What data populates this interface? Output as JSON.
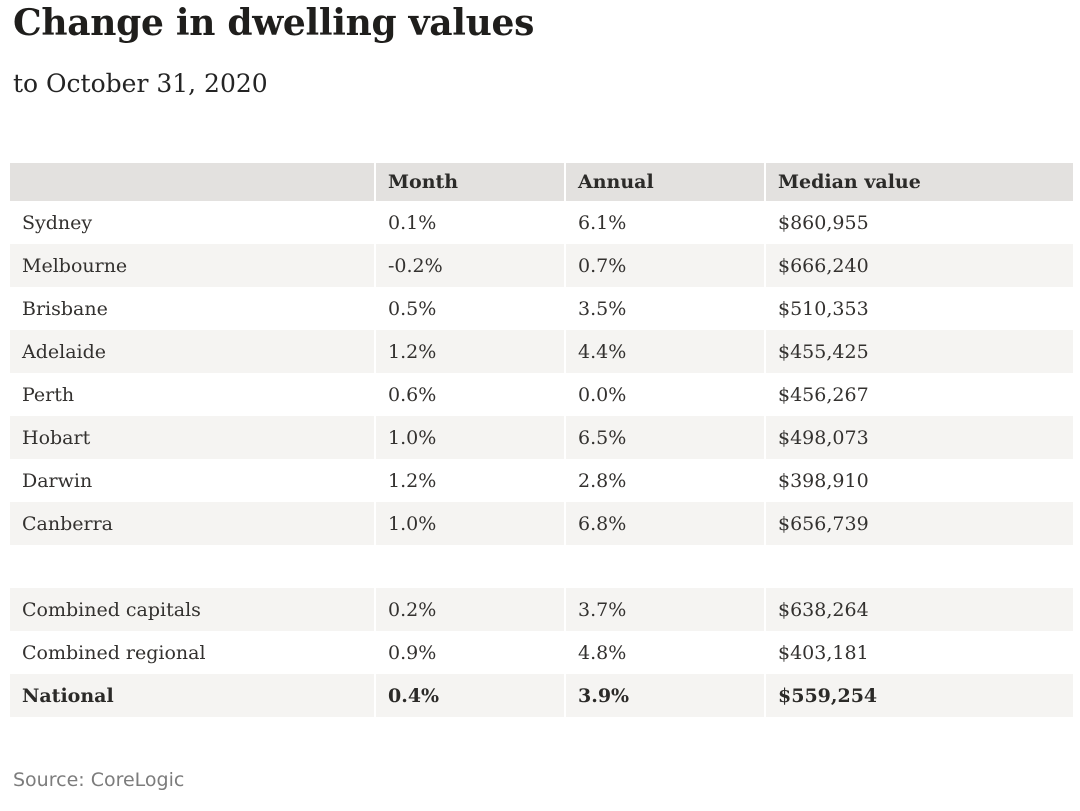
{
  "chart_data": {
    "type": "table",
    "title": "Change in dwelling values",
    "subtitle": "to October 31, 2020",
    "source": "Source: CoreLogic",
    "columns": [
      "",
      "Month",
      "Annual",
      "Median value"
    ],
    "city_rows": [
      {
        "region": "Sydney",
        "month": "0.1%",
        "annual": "6.1%",
        "median_value": "$860,955",
        "emphasis": false
      },
      {
        "region": "Melbourne",
        "month": "-0.2%",
        "annual": "0.7%",
        "median_value": "$666,240",
        "emphasis": false
      },
      {
        "region": "Brisbane",
        "month": "0.5%",
        "annual": "3.5%",
        "median_value": "$510,353",
        "emphasis": false
      },
      {
        "region": "Adelaide",
        "month": "1.2%",
        "annual": "4.4%",
        "median_value": "$455,425",
        "emphasis": false
      },
      {
        "region": "Perth",
        "month": "0.6%",
        "annual": "0.0%",
        "median_value": "$456,267",
        "emphasis": false
      },
      {
        "region": "Hobart",
        "month": "1.0%",
        "annual": "6.5%",
        "median_value": "$498,073",
        "emphasis": false
      },
      {
        "region": "Darwin",
        "month": "1.2%",
        "annual": "2.8%",
        "median_value": "$398,910",
        "emphasis": false
      },
      {
        "region": "Canberra",
        "month": "1.0%",
        "annual": "6.8%",
        "median_value": "$656,739",
        "emphasis": false
      }
    ],
    "summary_rows": [
      {
        "region": "Combined capitals",
        "month": "0.2%",
        "annual": "3.7%",
        "median_value": "$638,264",
        "emphasis": false
      },
      {
        "region": "Combined regional",
        "month": "0.9%",
        "annual": "4.8%",
        "median_value": "$403,181",
        "emphasis": false
      },
      {
        "region": "National",
        "month": "0.4%",
        "annual": "3.9%",
        "median_value": "$559,254",
        "emphasis": true
      }
    ],
    "layout_hints": {
      "row_shading": "alternating",
      "grid": "off",
      "legend": "none"
    },
    "style": {
      "header_bg": "#e3e1df",
      "row_alt_bg": "#f5f4f2",
      "body_text": "#33312f",
      "title_text": "#1f1e1c",
      "source_text": "#7c7c7c",
      "background": "#ffffff"
    }
  }
}
